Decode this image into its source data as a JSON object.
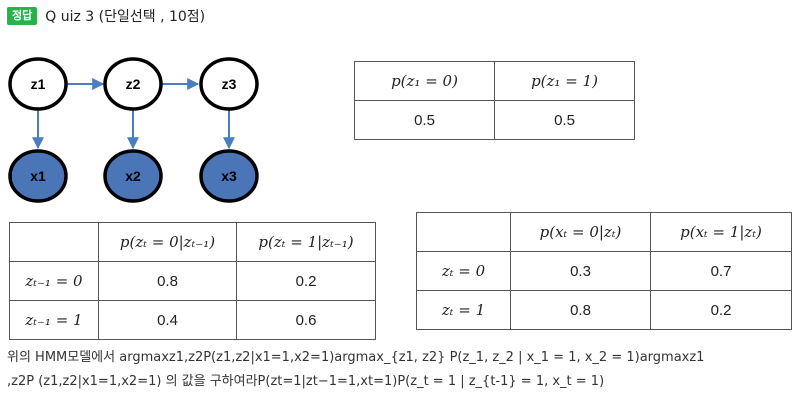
{
  "header": {
    "badge": "정답",
    "title": "Q uiz 3 (단일선택 , 10점)"
  },
  "diagram": {
    "hidden_nodes": [
      "z1",
      "z2",
      "z3"
    ],
    "observed_nodes": [
      "x1",
      "x2",
      "x3"
    ],
    "hidden_fill": "#ffffff",
    "observed_fill": "#4a76b8",
    "edge_color": "#4a7ec0"
  },
  "table_prior": {
    "headers": [
      "p(z₁ = 0)",
      "p(z₁ = 1)"
    ],
    "values": [
      "0.5",
      "0.5"
    ]
  },
  "table_transition": {
    "headers": [
      "",
      "p(zₜ = 0|zₜ₋₁)",
      "p(zₜ = 1|zₜ₋₁)"
    ],
    "rows": [
      {
        "label": "zₜ₋₁ = 0",
        "values": [
          "0.8",
          "0.2"
        ]
      },
      {
        "label": "zₜ₋₁ = 1",
        "values": [
          "0.4",
          "0.6"
        ]
      }
    ]
  },
  "table_emission": {
    "headers": [
      "",
      "p(xₜ = 0|zₜ)",
      "p(xₜ = 1|zₜ)"
    ],
    "rows": [
      {
        "label": "zₜ = 0",
        "values": [
          "0.3",
          "0.7"
        ]
      },
      {
        "label": "zₜ = 1",
        "values": [
          "0.8",
          "0.2"
        ]
      }
    ]
  },
  "question": {
    "line1": "위의 HMM모델에서 argmaxz1,z2P(z1,z2|x1=1,x2=1)argmax_{z1, z2} P(z_1, z_2 | x_1 = 1, x_2 = 1)argmaxz1",
    "line2": ",z2P (z1,z2|x1=1,x2=1) 의 값을 구하여라P(zt=1|zt−1=1,xt=1)P(z_t = 1 | z_{t-1} = 1, x_t = 1)"
  }
}
